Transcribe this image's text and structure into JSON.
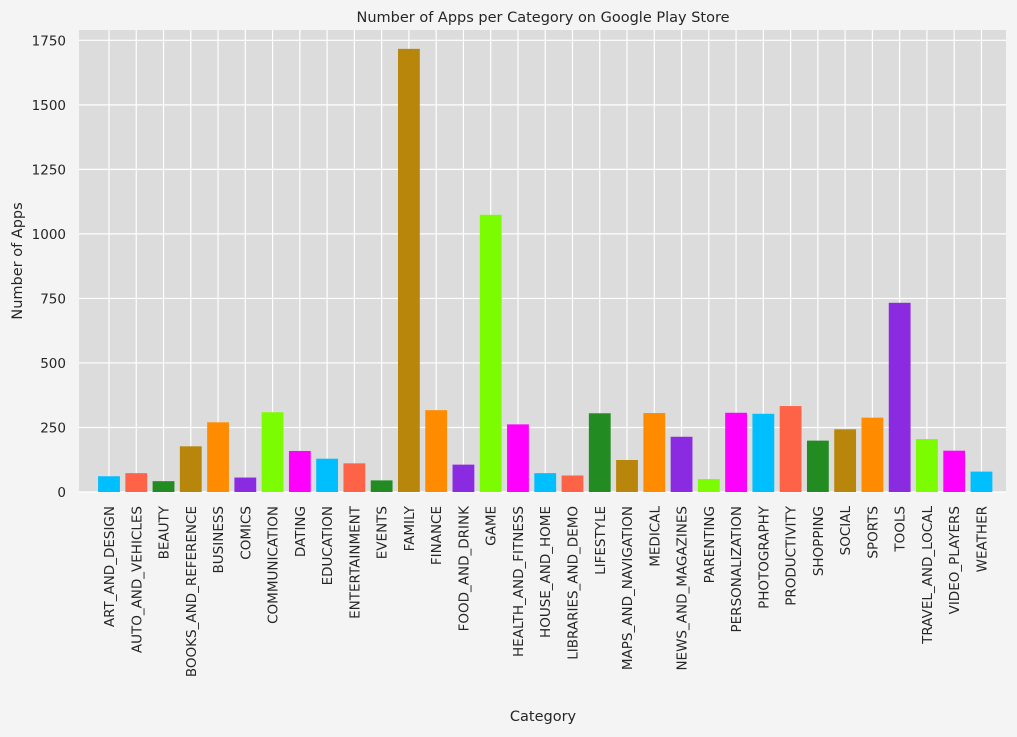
{
  "chart_data": {
    "type": "bar",
    "title": "Number of Apps per Category on Google Play Store",
    "xlabel": "Category",
    "ylabel": "Number of Apps",
    "ylim": [
      0,
      1790
    ],
    "yticks": [
      0,
      250,
      500,
      750,
      1000,
      1250,
      1500,
      1750
    ],
    "grid": true,
    "legend": "none",
    "categories": [
      "ART_AND_DESIGN",
      "AUTO_AND_VEHICLES",
      "BEAUTY",
      "BOOKS_AND_REFERENCE",
      "BUSINESS",
      "COMICS",
      "COMMUNICATION",
      "DATING",
      "EDUCATION",
      "ENTERTAINMENT",
      "EVENTS",
      "FAMILY",
      "FINANCE",
      "FOOD_AND_DRINK",
      "GAME",
      "HEALTH_AND_FITNESS",
      "HOUSE_AND_HOME",
      "LIBRARIES_AND_DEMO",
      "LIFESTYLE",
      "MAPS_AND_NAVIGATION",
      "MEDICAL",
      "NEWS_AND_MAGAZINES",
      "PARENTING",
      "PERSONALIZATION",
      "PHOTOGRAPHY",
      "PRODUCTIVITY",
      "SHOPPING",
      "SOCIAL",
      "SPORTS",
      "TOOLS",
      "TRAVEL_AND_LOCAL",
      "VIDEO_PLAYERS",
      "WEATHER"
    ],
    "values": [
      61,
      73,
      42,
      177,
      270,
      56,
      309,
      159,
      129,
      111,
      45,
      1717,
      317,
      106,
      1074,
      262,
      73,
      64,
      305,
      124,
      306,
      214,
      50,
      307,
      303,
      333,
      199,
      243,
      288,
      733,
      205,
      160,
      79
    ],
    "colors": [
      "#00bfff",
      "#ff6347",
      "#228b22",
      "#b8860b",
      "#ff8c00",
      "#8a2be2",
      "#7cfc00",
      "#ff00ff"
    ],
    "background": "#dcdcdc",
    "grid_color": "#ffffff"
  }
}
